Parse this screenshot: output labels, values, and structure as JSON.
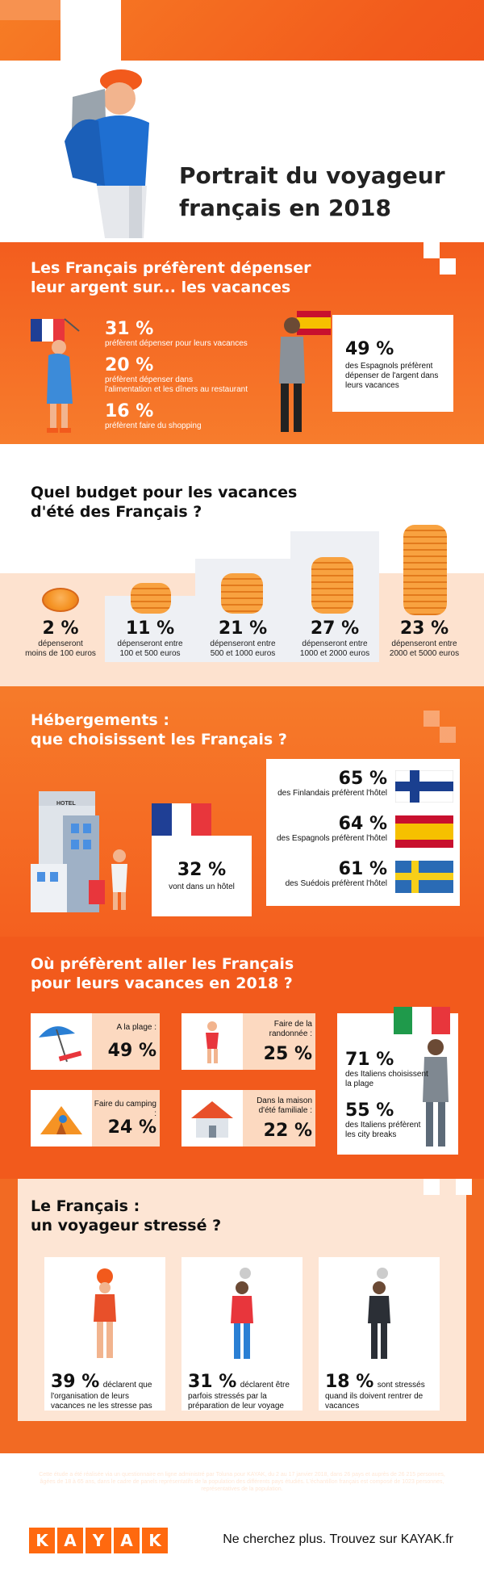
{
  "header": {
    "title_line1": "Portrait du voyageur",
    "title_line2": "français en 2018"
  },
  "spending": {
    "title_line1": "Les Français préfèrent dépenser",
    "title_line2": "leur argent sur... les vacances",
    "items": [
      {
        "pct": "31 %",
        "text": "préfèrent dépenser pour leurs vacances"
      },
      {
        "pct": "20 %",
        "text_line1": "préfèrent dépenser dans",
        "text_line2": "l'alimentation et les dîners au restaurant"
      },
      {
        "pct": "16 %",
        "text": "préfèrent faire du shopping"
      }
    ],
    "spain": {
      "pct": "49 %",
      "line1": "des Espagnols préfèrent",
      "line2": "dépenser de l'argent dans",
      "line3": "leurs vacances"
    }
  },
  "budget": {
    "title_line1": "Quel budget pour les vacances",
    "title_line2": "d'été des Français ?",
    "items": [
      {
        "pct": "2 %",
        "line1": "dépenseront",
        "line2": "moins de 100 euros"
      },
      {
        "pct": "11 %",
        "line1": "dépenseront entre",
        "line2": "100 et 500 euros"
      },
      {
        "pct": "21 %",
        "line1": "dépenseront entre",
        "line2": "500 et 1000 euros"
      },
      {
        "pct": "27 %",
        "line1": "dépenseront entre",
        "line2": "1000 et 2000 euros"
      },
      {
        "pct": "23 %",
        "line1": "dépenseront entre",
        "line2": "2000 et 5000 euros"
      }
    ]
  },
  "lodging": {
    "title_line1": "Hébergements :",
    "title_line2": "que choisissent les Français ?",
    "hotel_sign": "HOTEL",
    "france": {
      "pct": "32 %",
      "text": "vont dans un hôtel"
    },
    "others": [
      {
        "pct": "65 %",
        "text": "des Finlandais préfèrent l'hôtel"
      },
      {
        "pct": "64 %",
        "text": "des Espagnols préfèrent l'hôtel"
      },
      {
        "pct": "61 %",
        "text": "des Suédois préfèrent l'hôtel"
      }
    ]
  },
  "destinations": {
    "title_line1": "Où préfèrent aller les Français",
    "title_line2": "pour leurs vacances en 2018 ?",
    "cards": [
      {
        "label": "A la plage :",
        "pct": "49 %"
      },
      {
        "label_line1": "Faire de la",
        "label_line2": "randonnée :",
        "pct": "25 %"
      },
      {
        "label": "Faire du camping :",
        "pct": "24 %"
      },
      {
        "label_line1": "Dans la maison",
        "label_line2": "d'été familiale :",
        "pct": "22 %"
      }
    ],
    "italy": {
      "pct1": "71 %",
      "t1_line1": "des Italiens choisissent",
      "t1_line2": "la plage",
      "pct2": "55 %",
      "t2_line1": "des Italiens préfèrent",
      "t2_line2": "les city breaks"
    }
  },
  "stress": {
    "title_line1": "Le Français :",
    "title_line2": "un voyageur stressé ?",
    "items": [
      {
        "pct": "39 %",
        "line1": "déclarent que",
        "line2": "l'organisation de leurs",
        "line3": "vacances ne les stresse pas"
      },
      {
        "pct": "31 %",
        "line1": "déclarent être",
        "line2": "parfois stressés par la",
        "line3": "préparation de leur voyage"
      },
      {
        "pct": "18 %",
        "line1": "sont stressés",
        "line2": "quand ils doivent rentrer de",
        "line3": "vacances"
      }
    ]
  },
  "footnote": "Cette étude a été réalisée via un questionnaire en ligne administré par Toluna pour KAYAK, du 2 au 17 janvier 2018, dans 26 pays et auprès de 26 215 personnes, âgées de 18 à 65 ans, dans le cadre de panels représentatifs de la population des différents pays étudiés. L'échantillon français est composé de 1023 personnes, représentatives de la population.",
  "footer": {
    "logo_letters": [
      "K",
      "A",
      "Y",
      "A",
      "K"
    ],
    "tagline": "Ne cherchez plus. Trouvez sur KAYAK.fr"
  },
  "colors": {
    "accent": "#f25a1c",
    "kayak": "#ff690f",
    "france_blue": "#1f3f95",
    "france_red": "#e8363c"
  }
}
